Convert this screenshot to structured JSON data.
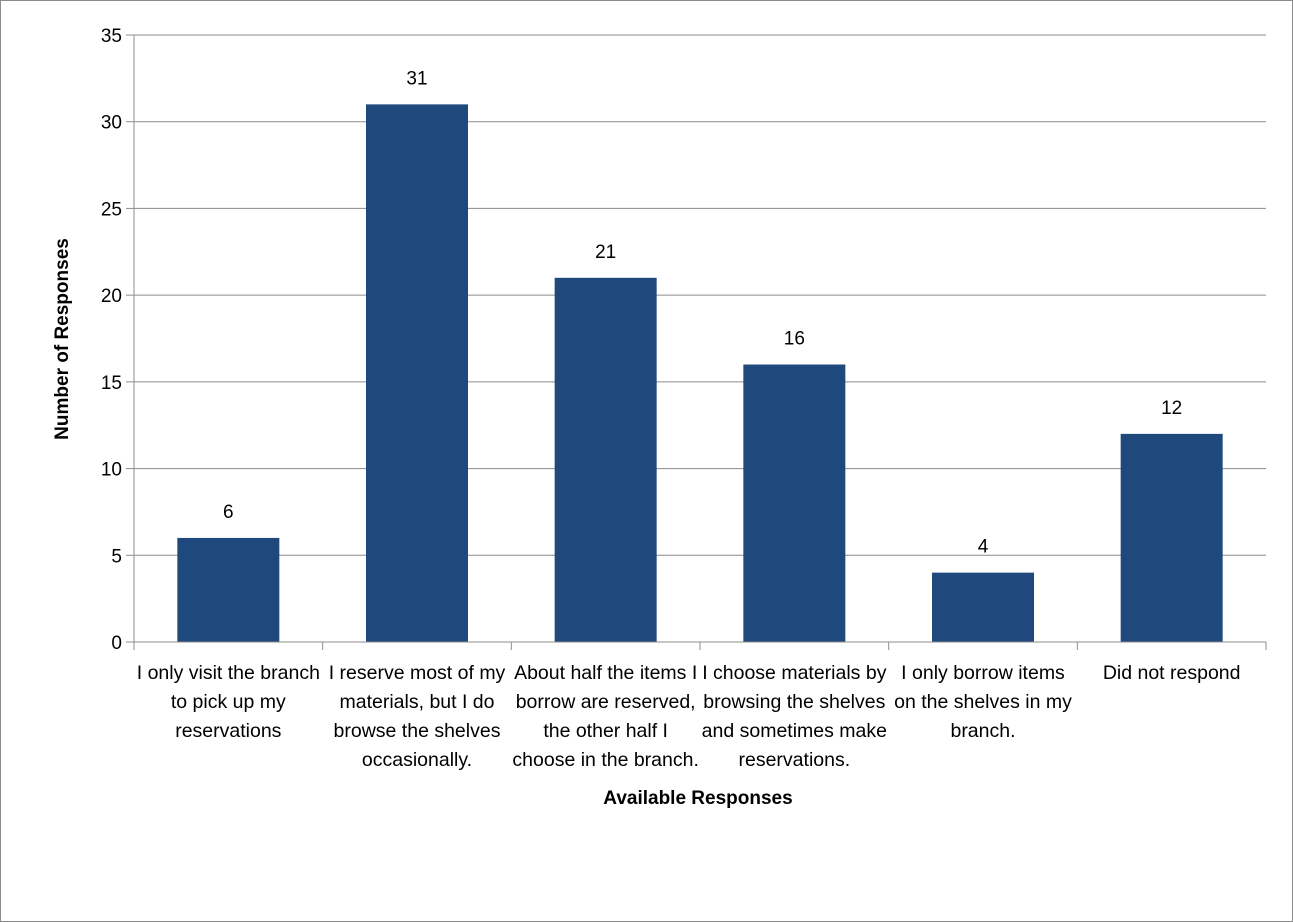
{
  "chart_data": {
    "type": "bar",
    "title": "",
    "xlabel": "Available Responses",
    "ylabel": "Number of Responses",
    "ylim": [
      0,
      35
    ],
    "yticks": [
      0,
      5,
      10,
      15,
      20,
      25,
      30,
      35
    ],
    "grid": true,
    "legend": "none",
    "bar_color": "#1f497d",
    "categories": [
      "I only visit the branch to pick up my reservations",
      "I reserve most of my materials, but I do browse the shelves occasionally.",
      "About half the items I borrow are reserved, the other half I choose in the branch.",
      "I choose materials by browsing the shelves and sometimes make reservations.",
      "I only borrow items on the shelves in my branch.",
      "Did not respond"
    ],
    "values": [
      6,
      31,
      21,
      16,
      4,
      12
    ]
  }
}
